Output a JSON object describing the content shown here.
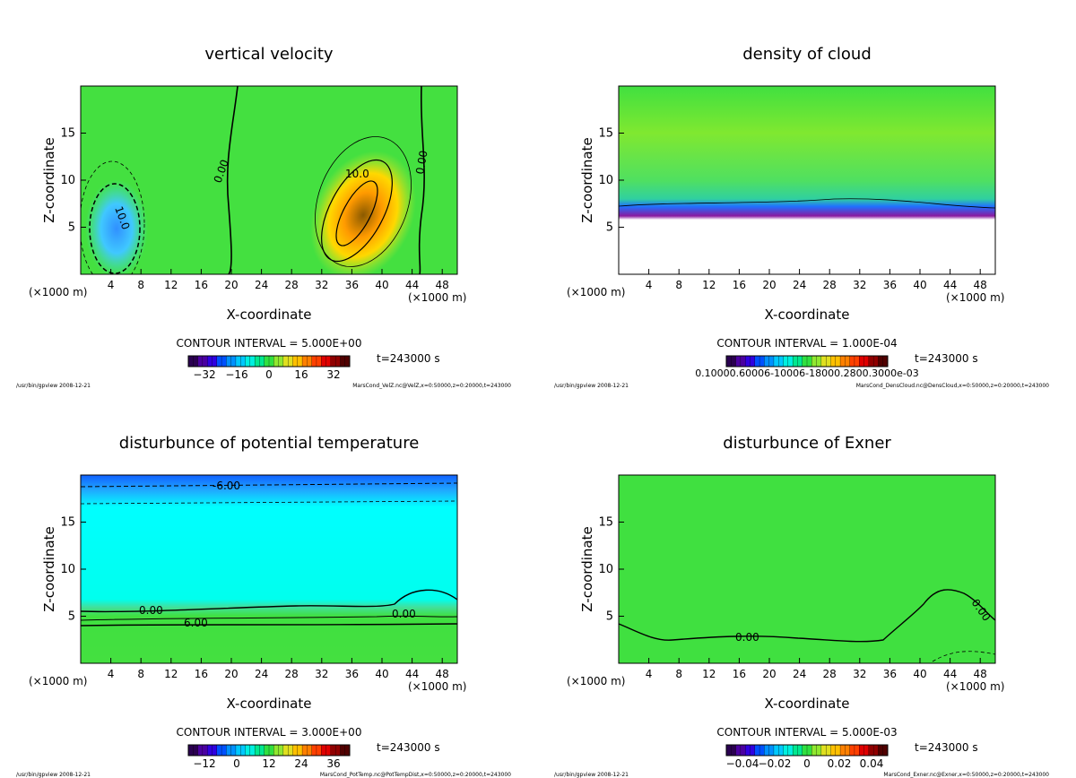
{
  "chart_data": [
    {
      "type": "heatmap",
      "title": "vertical velocity",
      "xlabel": "X-coordinate",
      "ylabel": "Z-coordinate",
      "x_unit_left": "(×1000 m)",
      "x_unit_right": "(×1000 m)",
      "xlim": [
        0,
        50
      ],
      "ylim": [
        0,
        20
      ],
      "xticks": [
        "4",
        "8",
        "12",
        "16",
        "20",
        "24",
        "28",
        "32",
        "36",
        "40",
        "44",
        "48"
      ],
      "yticks": [
        "5",
        "10",
        "15"
      ],
      "contour_labels": [
        "10.0",
        "0.00",
        "10.0",
        "0.00"
      ],
      "contour_interval": "CONTOUR INTERVAL = 5.000E+00",
      "colorbar_ticks": [
        "−32",
        "−16",
        "0",
        "16",
        "32"
      ],
      "time": "t=243000 s",
      "footer_left": "/usr/bin/gpview  2008-12-21",
      "footer_right": "MarsCond_VelZ.nc@VelZ,x=0:50000,z=0:20000,t=243000"
    },
    {
      "type": "heatmap",
      "title": "density of cloud",
      "xlabel": "X-coordinate",
      "ylabel": "Z-coordinate",
      "x_unit_left": "(×1000 m)",
      "x_unit_right": "(×1000 m)",
      "xlim": [
        0,
        50
      ],
      "ylim": [
        0,
        20
      ],
      "xticks": [
        "4",
        "8",
        "12",
        "16",
        "20",
        "24",
        "28",
        "32",
        "36",
        "40",
        "44",
        "48"
      ],
      "yticks": [
        "5",
        "10",
        "15"
      ],
      "contour_labels": [],
      "contour_interval": "CONTOUR INTERVAL = 1.000E-04",
      "colorbar_ticks_text": "0.10000.60006-10006-18000.2800.3000e-03",
      "time": "t=243000 s",
      "footer_left": "/usr/bin/gpview  2008-12-21",
      "footer_right": "MarsCond_DensCloud.nc@DensCloud,x=0:50000,z=0:20000,t=243000"
    },
    {
      "type": "heatmap",
      "title": "disturbunce of potential temperature",
      "xlabel": "X-coordinate",
      "ylabel": "Z-coordinate",
      "x_unit_left": "(×1000 m)",
      "x_unit_right": "(×1000 m)",
      "xlim": [
        0,
        50
      ],
      "ylim": [
        0,
        20
      ],
      "xticks": [
        "4",
        "8",
        "12",
        "16",
        "20",
        "24",
        "28",
        "32",
        "36",
        "40",
        "44",
        "48"
      ],
      "yticks": [
        "5",
        "10",
        "15"
      ],
      "contour_labels": [
        "-6.00",
        "0.00",
        "0.00",
        "6.00"
      ],
      "contour_interval": "CONTOUR INTERVAL = 3.000E+00",
      "colorbar_ticks": [
        "−12",
        "0",
        "12",
        "24",
        "36"
      ],
      "time": "t=243000 s",
      "footer_left": "/usr/bin/gpview  2008-12-21",
      "footer_right": "MarsCond_PotTemp.nc@PotTempDist,x=0:50000,z=0:20000,t=243000"
    },
    {
      "type": "heatmap",
      "title": "disturbunce of Exner",
      "xlabel": "X-coordinate",
      "ylabel": "Z-coordinate",
      "x_unit_left": "(×1000 m)",
      "x_unit_right": "(×1000 m)",
      "xlim": [
        0,
        50
      ],
      "ylim": [
        0,
        20
      ],
      "xticks": [
        "4",
        "8",
        "12",
        "16",
        "20",
        "24",
        "28",
        "32",
        "36",
        "40",
        "44",
        "48"
      ],
      "yticks": [
        "5",
        "10",
        "15"
      ],
      "contour_labels": [
        "0.00",
        "0.00"
      ],
      "contour_interval": "CONTOUR INTERVAL = 5.000E-03",
      "colorbar_ticks": [
        "−0.04",
        "−0.02",
        "0",
        "0.02",
        "0.04"
      ],
      "time": "t=243000 s",
      "footer_left": "/usr/bin/gpview  2008-12-21",
      "footer_right": "MarsCond_Exner.nc@Exner,x=0:50000,z=0:20000,t=243000"
    }
  ]
}
